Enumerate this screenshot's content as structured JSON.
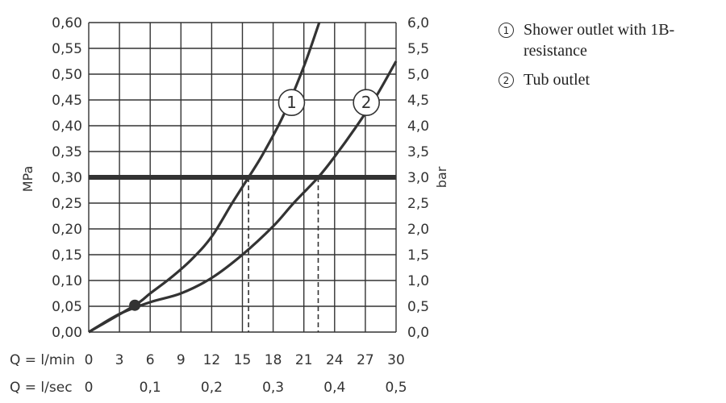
{
  "chart_data": {
    "type": "line",
    "left_axis": {
      "title": "MPa",
      "ylim": [
        0,
        0.6
      ],
      "ticks": [
        "0,00",
        "0,05",
        "0,10",
        "0,15",
        "0,20",
        "0,25",
        "0,30",
        "0,35",
        "0,40",
        "0,45",
        "0,50",
        "0,55",
        "0,60"
      ]
    },
    "right_axis": {
      "title": "bar",
      "ylim": [
        0,
        6
      ],
      "ticks": [
        "0,0",
        "0,5",
        "1,0",
        "1,5",
        "2,0",
        "2,5",
        "3,0",
        "3,5",
        "4,0",
        "4,5",
        "5,0",
        "5,5",
        "6,0"
      ]
    },
    "x_axis": {
      "xlim": [
        0,
        30
      ],
      "rows": [
        {
          "label": "Q = l/min",
          "ticks": [
            "0",
            "3",
            "6",
            "9",
            "12",
            "15",
            "18",
            "21",
            "24",
            "27",
            "30"
          ],
          "values": [
            0,
            3,
            6,
            9,
            12,
            15,
            18,
            21,
            24,
            27,
            30
          ]
        },
        {
          "label": "Q = l/sec",
          "ticks": [
            "0",
            "0,1",
            "0,2",
            "0,3",
            "0,4",
            "0,5"
          ],
          "values": [
            0,
            6,
            12,
            18,
            24,
            30
          ]
        }
      ]
    },
    "grid": true,
    "reference_line": {
      "y": 0.3,
      "units": "MPa"
    },
    "series": [
      {
        "marker": "1",
        "name": "Shower outlet with 1B-resistance",
        "x": [
          0,
          4.5,
          6,
          8,
          10,
          12,
          14,
          15.6,
          17,
          19,
          21,
          22.5
        ],
        "y": [
          0,
          0.052,
          0.075,
          0.105,
          0.14,
          0.185,
          0.25,
          0.3,
          0.345,
          0.42,
          0.515,
          0.6
        ]
      },
      {
        "marker": "2",
        "name": "Tub outlet",
        "x": [
          0,
          3,
          6,
          9,
          12,
          15,
          18,
          20,
          22.4,
          24,
          26,
          28,
          30
        ],
        "y": [
          0,
          0.035,
          0.058,
          0.075,
          0.105,
          0.15,
          0.205,
          0.25,
          0.3,
          0.34,
          0.395,
          0.455,
          0.525
        ]
      }
    ],
    "drop_lines": [
      {
        "x": 15.6,
        "y": 0.3
      },
      {
        "x": 22.4,
        "y": 0.3
      }
    ],
    "point": {
      "x": 4.5,
      "y": 0.052
    },
    "series_labels": [
      {
        "text": "1",
        "x": 19.8,
        "y": 0.445
      },
      {
        "text": "2",
        "x": 27.1,
        "y": 0.445
      }
    ]
  },
  "legend": [
    {
      "badge": "1",
      "text": "Shower outlet with 1B-resistance"
    },
    {
      "badge": "2",
      "text": "Tub outlet"
    }
  ]
}
